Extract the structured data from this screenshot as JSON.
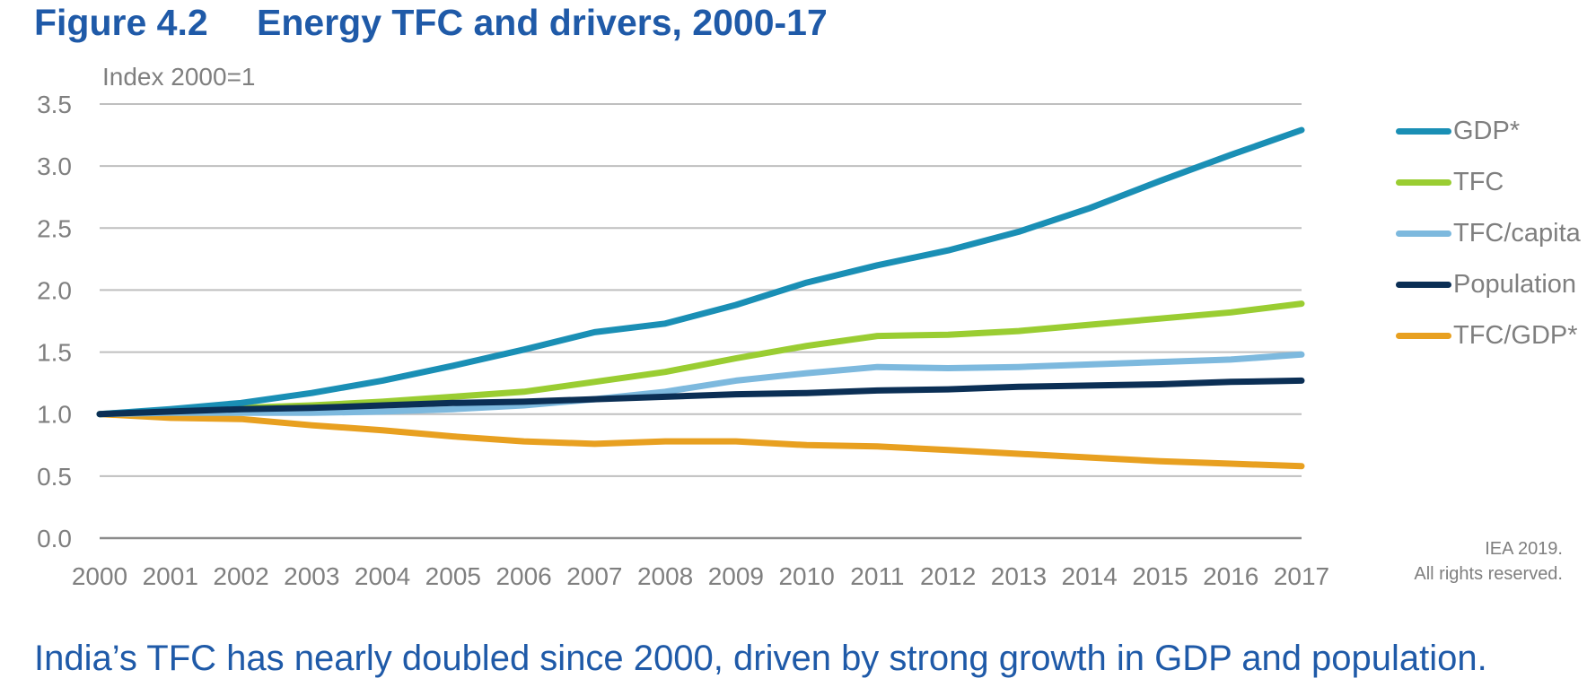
{
  "figure": {
    "number": "Figure 4.2",
    "title": "Energy TFC and drivers, 2000-17"
  },
  "caption": "India’s TFC has nearly doubled since 2000, driven by strong growth in GDP and population.",
  "credit": {
    "line1": "IEA 2019.",
    "line2": "All rights reserved."
  },
  "chart_data": {
    "type": "line",
    "title": "Energy TFC and drivers, 2000-17",
    "xlabel": "",
    "ylabel": "Index 2000=1",
    "ylim": [
      0,
      3.5
    ],
    "yticks": [
      "0.0",
      "0.5",
      "1.0",
      "1.5",
      "2.0",
      "2.5",
      "3.0",
      "3.5"
    ],
    "ytick_values": [
      0,
      0.5,
      1.0,
      1.5,
      2.0,
      2.5,
      3.0,
      3.5
    ],
    "grid": true,
    "legend_position": "right",
    "categories": [
      "2000",
      "2001",
      "2002",
      "2003",
      "2004",
      "2005",
      "2006",
      "2007",
      "2008",
      "2009",
      "2010",
      "2011",
      "2012",
      "2013",
      "2014",
      "2015",
      "2016",
      "2017"
    ],
    "series": [
      {
        "name": "GDP*",
        "color": "#1A8FB5",
        "values": [
          1.0,
          1.04,
          1.09,
          1.17,
          1.27,
          1.39,
          1.52,
          1.66,
          1.73,
          1.88,
          2.06,
          2.2,
          2.32,
          2.47,
          2.66,
          2.88,
          3.09,
          3.29
        ]
      },
      {
        "name": "TFC",
        "color": "#9ACD32",
        "values": [
          1.0,
          1.03,
          1.05,
          1.07,
          1.1,
          1.14,
          1.18,
          1.26,
          1.34,
          1.45,
          1.55,
          1.63,
          1.64,
          1.67,
          1.72,
          1.77,
          1.82,
          1.89
        ]
      },
      {
        "name": "TFC/capita",
        "color": "#7DB9DE",
        "values": [
          1.0,
          1.01,
          1.01,
          1.01,
          1.02,
          1.04,
          1.07,
          1.12,
          1.18,
          1.27,
          1.33,
          1.38,
          1.37,
          1.38,
          1.4,
          1.42,
          1.44,
          1.48
        ]
      },
      {
        "name": "Population",
        "color": "#0B2F55",
        "values": [
          1.0,
          1.02,
          1.04,
          1.05,
          1.07,
          1.09,
          1.1,
          1.12,
          1.14,
          1.16,
          1.17,
          1.19,
          1.2,
          1.22,
          1.23,
          1.24,
          1.26,
          1.27
        ]
      },
      {
        "name": "TFC/GDP*",
        "color": "#E8A020",
        "values": [
          1.0,
          0.97,
          0.96,
          0.91,
          0.87,
          0.82,
          0.78,
          0.76,
          0.78,
          0.78,
          0.75,
          0.74,
          0.71,
          0.68,
          0.65,
          0.62,
          0.6,
          0.58
        ]
      }
    ]
  }
}
